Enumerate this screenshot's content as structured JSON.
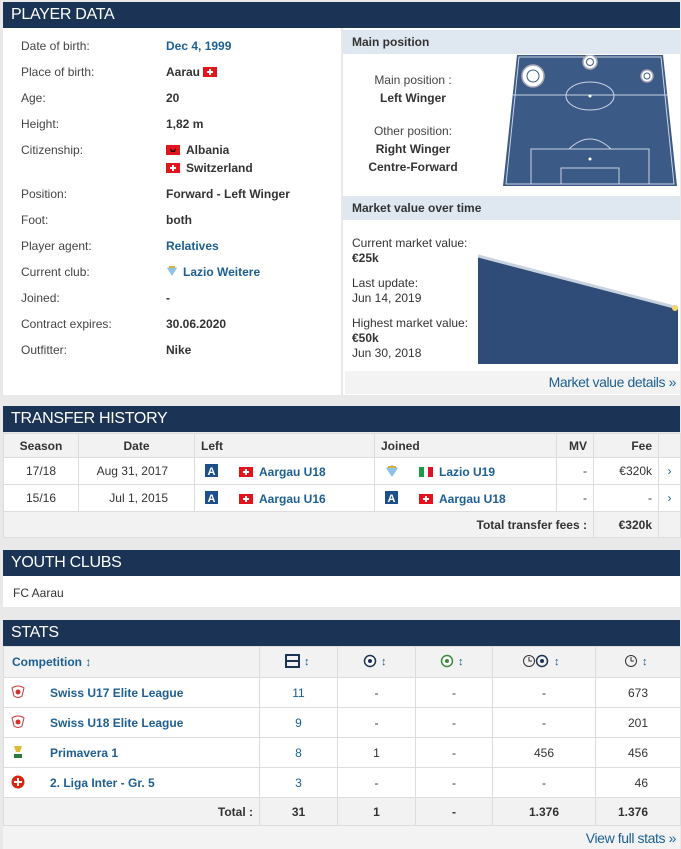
{
  "player_data": {
    "title": "PLAYER DATA",
    "facts": [
      {
        "label": "Date of birth:",
        "value": "Dec 4, 1999"
      },
      {
        "label": "Place of birth:",
        "value": "Aarau"
      },
      {
        "label": "Age:",
        "value": "20"
      },
      {
        "label": "Height:",
        "value": "1,82 m"
      },
      {
        "label": "Citizenship:",
        "values": [
          "Albania",
          "Switzerland"
        ]
      },
      {
        "label": "Position:",
        "value": "Forward - Left Winger"
      },
      {
        "label": "Foot:",
        "value": "both"
      },
      {
        "label": "Player agent:",
        "value": "Relatives"
      },
      {
        "label": "Current club:",
        "value": "Lazio Weitere"
      },
      {
        "label": "Joined:",
        "value": "-"
      },
      {
        "label": "Contract expires:",
        "value": "30.06.2020"
      },
      {
        "label": "Outfitter:",
        "value": "Nike"
      }
    ]
  },
  "main_position": {
    "title": "Main position",
    "main_label": "Main position :",
    "main_value": "Left Winger",
    "other_label": "Other position:",
    "other_values": [
      "Right Winger",
      "Centre-Forward"
    ]
  },
  "market_value": {
    "title": "Market value over time",
    "current_label": "Current market value:",
    "current_value": "€25k",
    "update_label": "Last update:",
    "update_value": "Jun 14, 2019",
    "highest_label": "Highest market value:",
    "highest_value": "€50k",
    "highest_date": "Jun 30, 2018",
    "link": "Market value details »"
  },
  "transfer_history": {
    "title": "TRANSFER HISTORY",
    "columns": [
      "Season",
      "Date",
      "Left",
      "Joined",
      "MV",
      "Fee"
    ],
    "rows": [
      [
        "17/18",
        "Aug 31, 2017",
        "Aargau U18",
        "Lazio U19",
        "-",
        "€320k"
      ],
      [
        "15/16",
        "Jul 1, 2015",
        "Aargau U16",
        "Aargau U18",
        "-",
        "-"
      ]
    ],
    "total_label": "Total transfer fees :",
    "total": "€320k"
  },
  "youth_clubs": {
    "title": "YOUTH CLUBS",
    "text": "FC Aarau"
  },
  "stats": {
    "title": "STATS",
    "competition_header": "Competition",
    "rows": [
      [
        "Swiss U17 Elite League",
        "11",
        "-",
        "-",
        "-",
        "673"
      ],
      [
        "Swiss U18 Elite League",
        "9",
        "-",
        "-",
        "-",
        "201"
      ],
      [
        "Primavera 1",
        "8",
        "1",
        "-",
        "456",
        "456"
      ],
      [
        "2. Liga Inter - Gr. 5",
        "3",
        "-",
        "-",
        "-",
        "46"
      ]
    ],
    "total": [
      "Total :",
      "31",
      "1",
      "-",
      "1.376",
      "1.376"
    ],
    "link": "View full stats »"
  }
}
